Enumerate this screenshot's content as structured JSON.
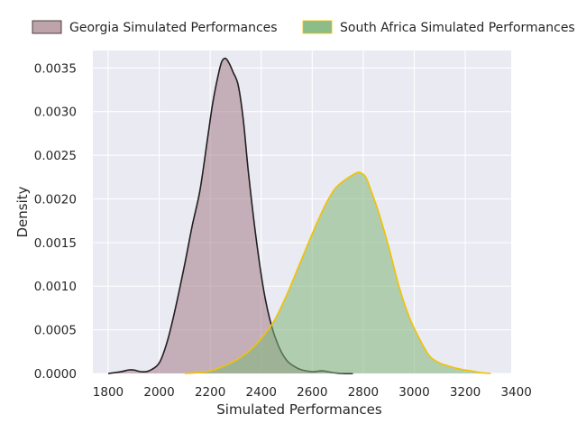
{
  "chart_data": {
    "type": "area",
    "xlabel": "Simulated Performances",
    "ylabel": "Density",
    "xlim": [
      1740,
      3380
    ],
    "ylim": [
      0,
      0.0037
    ],
    "xticks": [
      1800,
      2000,
      2200,
      2400,
      2600,
      2800,
      3000,
      3200,
      3400
    ],
    "xtick_labels": [
      "1800",
      "2000",
      "2200",
      "2400",
      "2600",
      "2800",
      "3000",
      "3200",
      "3400"
    ],
    "yticks": [
      0,
      0.0005,
      0.001,
      0.0015,
      0.002,
      0.0025,
      0.003,
      0.0035
    ],
    "ytick_labels": [
      "0.0000",
      "0.0005",
      "0.0010",
      "0.0015",
      "0.0020",
      "0.0025",
      "0.0030",
      "0.0035"
    ],
    "grid": true,
    "background": "#eaeaf2",
    "legend_position": "top, outside plot",
    "series": [
      {
        "name": "Georgia Simulated Performances",
        "fill": "#a9848f",
        "line": "#231f20",
        "x": [
          1800,
          1850,
          1880,
          1900,
          1930,
          1960,
          2000,
          2030,
          2060,
          2100,
          2130,
          2160,
          2190,
          2210,
          2230,
          2245,
          2260,
          2275,
          2290,
          2310,
          2330,
          2350,
          2380,
          2410,
          2440,
          2470,
          2500,
          2530,
          2560,
          2600,
          2640,
          2680,
          2720,
          2760
        ],
        "y": [
          0.0,
          2e-05,
          4e-05,
          4e-05,
          2e-05,
          3e-05,
          0.00012,
          0.00035,
          0.0007,
          0.00125,
          0.0017,
          0.0021,
          0.0027,
          0.0031,
          0.0034,
          0.00357,
          0.00361,
          0.00355,
          0.00345,
          0.0033,
          0.0029,
          0.0023,
          0.00155,
          0.00095,
          0.00055,
          0.0003,
          0.00015,
          8e-05,
          4e-05,
          2e-05,
          3e-05,
          1e-05,
          0.0,
          0.0
        ]
      },
      {
        "name": "South Africa Simulated Performances",
        "fill": "#7fb57a",
        "line": "#f2c200",
        "x": [
          2100,
          2150,
          2200,
          2250,
          2300,
          2350,
          2400,
          2450,
          2500,
          2550,
          2600,
          2630,
          2660,
          2690,
          2720,
          2750,
          2775,
          2790,
          2810,
          2830,
          2860,
          2900,
          2940,
          2980,
          3020,
          3060,
          3100,
          3140,
          3180,
          3220,
          3260,
          3300
        ],
        "y": [
          0.0,
          1e-05,
          3e-05,
          8e-05,
          0.00015,
          0.00025,
          0.0004,
          0.0006,
          0.0009,
          0.00125,
          0.0016,
          0.0018,
          0.00198,
          0.00212,
          0.0022,
          0.00226,
          0.0023,
          0.0023,
          0.00225,
          0.0021,
          0.00185,
          0.00145,
          0.001,
          0.00065,
          0.0004,
          0.0002,
          0.00012,
          8e-05,
          5e-05,
          3e-05,
          1e-05,
          0.0
        ]
      }
    ]
  }
}
